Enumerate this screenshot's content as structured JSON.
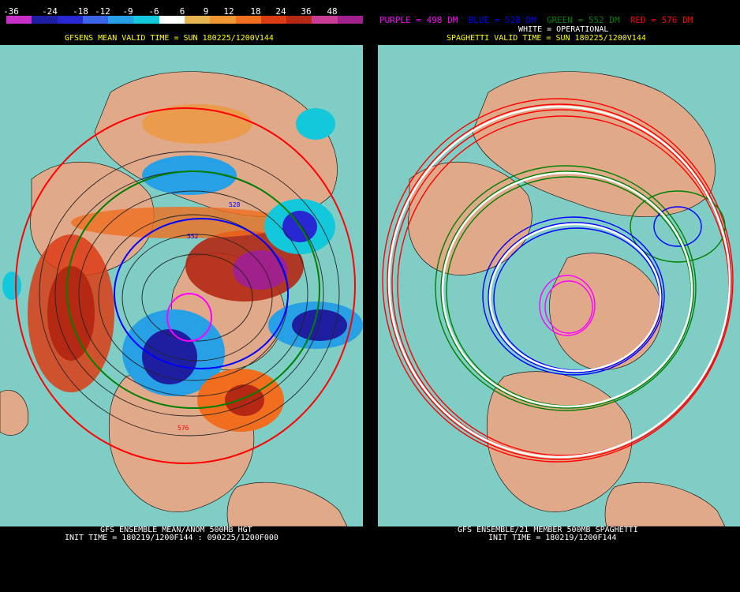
{
  "colorbar": {
    "ticks": [
      "-36",
      "-24",
      "-18",
      "-12",
      "-9",
      "-6",
      "6",
      "9",
      "12",
      "18",
      "24",
      "36",
      "48"
    ],
    "colors": [
      "#c82ec8",
      "#1e1ea0",
      "#2828d2",
      "#3c64e6",
      "#28a0e6",
      "#14c8dc",
      "#ffffff",
      "#e6b450",
      "#f09632",
      "#f06e1e",
      "#dc3c14",
      "#b42814",
      "#c83c96",
      "#a0208c"
    ]
  },
  "left": {
    "title": "GFSENS MEAN VALID TIME = SUN 180225/1200V144",
    "footer_line1": "GFS ENSEMBLE MEAN/ANOM 500MB HGT",
    "footer_line2": "INIT TIME = 180219/1200F144 : 090225/1200F000",
    "contour_labels": [
      "528",
      "552",
      "576"
    ]
  },
  "right": {
    "legend": {
      "purple": "PURPLE = 498 DM",
      "blue": "BLUE = 528 DM",
      "green": "GREEN = 552 DM",
      "red": "RED = 576 DM",
      "white": "WHITE = OPERATIONAL"
    },
    "title": "SPAGHETTI VALID TIME = SUN 180225/1200V144",
    "footer_line1": "GFS ENSEMBLE/21 MEMBER 500MB SPAGHETTI",
    "footer_line2": "INIT TIME = 180219/1200F144"
  },
  "colors": {
    "ocean": "#7fcdc4",
    "land": "#e0a98a",
    "purple": "#ff00ff",
    "blue": "#0000ff",
    "green": "#008000",
    "red": "#ff0000",
    "white": "#ffffff"
  }
}
